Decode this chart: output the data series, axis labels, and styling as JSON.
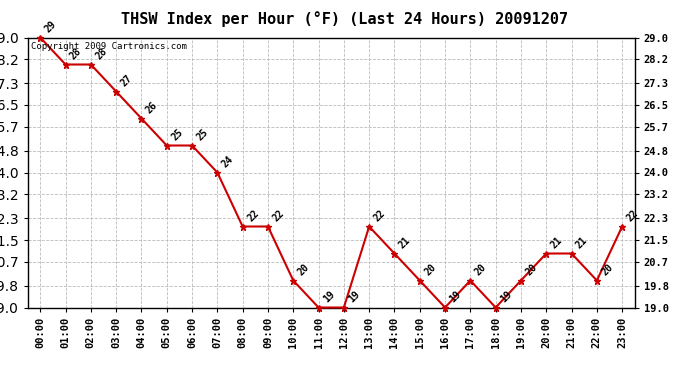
{
  "title": "THSW Index per Hour (°F) (Last 24 Hours) 20091207",
  "copyright_text": "Copyright 2009 Cartronics.com",
  "x_labels": [
    "00:00",
    "01:00",
    "02:00",
    "03:00",
    "04:00",
    "05:00",
    "06:00",
    "07:00",
    "08:00",
    "09:00",
    "10:00",
    "11:00",
    "12:00",
    "13:00",
    "14:00",
    "15:00",
    "16:00",
    "17:00",
    "18:00",
    "19:00",
    "20:00",
    "21:00",
    "22:00",
    "23:00"
  ],
  "y_values": [
    29,
    28,
    28,
    27,
    26,
    25,
    25,
    24,
    22,
    22,
    20,
    19,
    19,
    22,
    21,
    20,
    19,
    20,
    19,
    20,
    21,
    21,
    20,
    22
  ],
  "y_labels": [
    19.0,
    19.8,
    20.7,
    21.5,
    22.3,
    23.2,
    24.0,
    24.8,
    25.7,
    26.5,
    27.3,
    28.2,
    29.0
  ],
  "ylim": [
    19.0,
    29.0
  ],
  "line_color": "#cc0000",
  "marker_color": "#cc0000",
  "bg_color": "#ffffff",
  "plot_bg_color": "#ffffff",
  "grid_color": "#bbbbbb",
  "title_fontsize": 11,
  "tick_fontsize": 7.5,
  "copyright_fontsize": 6.5,
  "annotation_fontsize": 7
}
